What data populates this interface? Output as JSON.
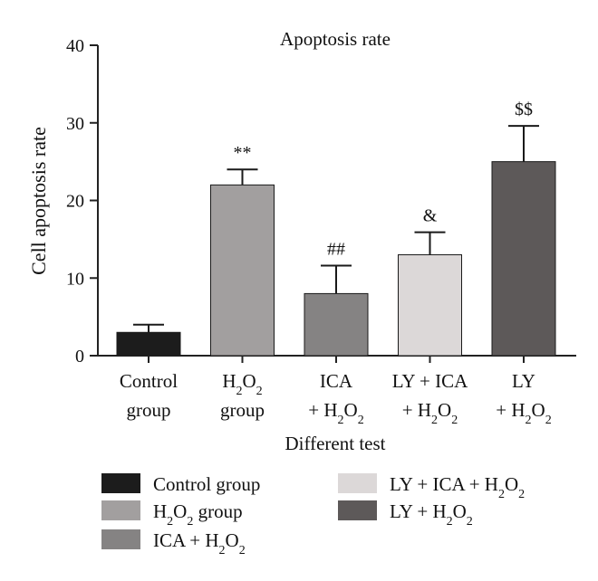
{
  "chart_data": {
    "type": "bar",
    "title": "Apoptosis rate",
    "xlabel": "Different test",
    "ylabel": "Cell apoptosis rate",
    "ylim": [
      0,
      40
    ],
    "yticks": [
      0,
      10,
      20,
      30,
      40
    ],
    "grid": false,
    "legend_position": "bottom",
    "categories": [
      "Control group",
      "H2O2 group",
      "ICA + H2O2",
      "LY + ICA + H2O2",
      "LY + H2O2"
    ],
    "tick_labels": [
      [
        "Control",
        "group"
      ],
      [
        "H2O2",
        "group"
      ],
      [
        "ICA",
        "+ H2O2"
      ],
      [
        "LY + ICA",
        "+ H2O2"
      ],
      [
        "LY",
        "+ H2O2"
      ]
    ],
    "values": [
      3,
      22,
      8,
      13,
      25
    ],
    "errors": [
      1,
      2,
      3.6,
      2.9,
      4.6
    ],
    "significance": [
      "",
      "**",
      "##",
      "&",
      "$$"
    ],
    "colors": [
      "#1c1c1c",
      "#a29f9f",
      "#858383",
      "#dcd8d8",
      "#5d5959"
    ],
    "legend": [
      "Control group",
      "H2O2 group",
      "ICA + H2O2",
      "LY + ICA + H2O2",
      "LY + H2O2"
    ]
  }
}
